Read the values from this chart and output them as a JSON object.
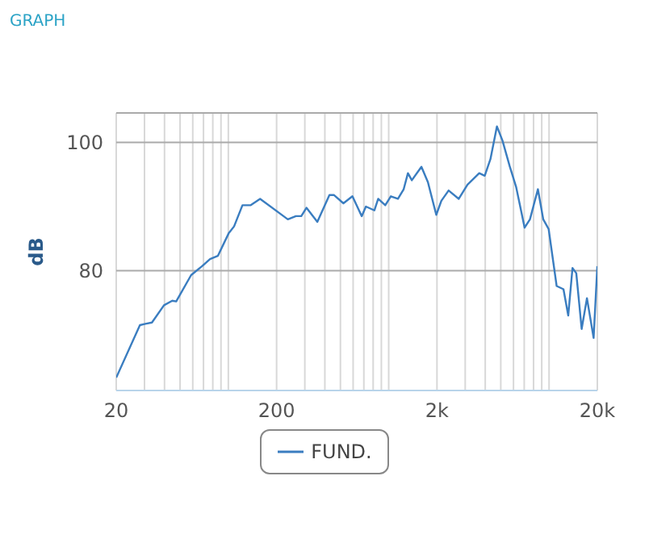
{
  "chart_data": {
    "type": "line",
    "title": "GRAPH",
    "ylabel": "dB",
    "x": [
      20,
      28.1,
      30.4,
      33.4,
      39.7,
      44.7,
      47.3,
      58.6,
      68.6,
      76.9,
      86,
      100.4,
      108.6,
      122.5,
      137.4,
      157.8,
      235,
      264,
      285,
      307,
      359,
      427,
      455,
      522,
      594,
      679,
      721,
      814,
      860,
      952,
      1031,
      1142,
      1240,
      1318,
      1394,
      1600,
      1756,
      1980,
      2130,
      2364,
      2735,
      3100,
      3670,
      3970,
      4310,
      4730,
      5120,
      5680,
      6240,
      7040,
      7600,
      8520,
      9200,
      9940,
      11150,
      12300,
      13170,
      14000,
      14780,
      15970,
      17230,
      18960,
      20000
    ],
    "series": [
      {
        "name": "FUND.",
        "color": "#3a7dc0",
        "values": [
          63.3,
          71.5,
          71.7,
          71.9,
          74.6,
          75.3,
          75.2,
          79.3,
          80.7,
          81.8,
          82.3,
          85.8,
          86.9,
          90.2,
          90.2,
          91.2,
          88.0,
          88.5,
          88.5,
          89.8,
          87.6,
          91.8,
          91.8,
          90.5,
          91.6,
          88.5,
          90.0,
          89.4,
          91.2,
          90.2,
          91.6,
          91.2,
          92.7,
          95.2,
          94.1,
          96.2,
          93.8,
          88.7,
          90.9,
          92.5,
          91.2,
          93.4,
          95.2,
          94.8,
          97.4,
          102.5,
          100.3,
          96.3,
          93.0,
          86.7,
          88.0,
          92.7,
          88.0,
          86.5,
          77.6,
          77.1,
          73.0,
          80.4,
          79.6,
          70.9,
          75.7,
          69.5,
          80.7
        ]
      }
    ],
    "log": "x",
    "xlim": [
      20,
      20000
    ],
    "xticks": [
      20,
      {
        "value": 30,
        "label": null
      },
      {
        "value": 40,
        "label": null
      },
      {
        "value": 50,
        "label": null
      },
      {
        "value": 60,
        "label": null
      },
      {
        "value": 70,
        "label": null
      },
      {
        "value": 80,
        "label": null
      },
      {
        "value": 90,
        "label": null
      },
      {
        "value": 100,
        "label": null
      },
      200,
      {
        "value": 300,
        "label": null
      },
      {
        "value": 400,
        "label": null
      },
      {
        "value": 500,
        "label": null
      },
      {
        "value": 600,
        "label": null
      },
      {
        "value": 700,
        "label": null
      },
      {
        "value": 800,
        "label": null
      },
      {
        "value": 900,
        "label": null
      },
      {
        "value": 1000,
        "label": null
      },
      {
        "value": 2000,
        "label": "2k"
      },
      {
        "value": 3000,
        "label": null
      },
      {
        "value": 4000,
        "label": null
      },
      {
        "value": 5000,
        "label": null
      },
      {
        "value": 6000,
        "label": null
      },
      {
        "value": 7000,
        "label": null
      },
      {
        "value": 8000,
        "label": null
      },
      {
        "value": 9000,
        "label": null
      },
      {
        "value": 10000,
        "label": null
      },
      {
        "value": 20000,
        "label": "20k"
      }
    ],
    "ylim": [
      61.3,
      104.6
    ],
    "yticks": [
      80,
      100
    ],
    "grid": true,
    "legend": "bottom",
    "marker": "none",
    "line_style": "solid"
  }
}
